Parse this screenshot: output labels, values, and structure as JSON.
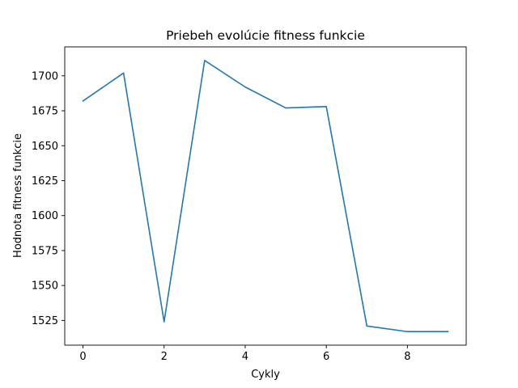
{
  "chart_data": {
    "type": "line",
    "title": "Priebeh evolúcie fitness funkcie",
    "xlabel": "Cykly",
    "ylabel": "Hodnota fitness funkcie",
    "x": [
      0,
      1,
      2,
      3,
      4,
      5,
      6,
      7,
      8,
      9
    ],
    "series": [
      {
        "values": [
          1682,
          1702,
          1524,
          1711,
          1692,
          1677,
          1678,
          1521,
          1517,
          1517
        ],
        "color": "#1f77b4"
      }
    ],
    "xlim": [
      -0.45,
      9.45
    ],
    "ylim": [
      1507.3,
      1720.7
    ],
    "xticks": [
      0,
      2,
      4,
      6,
      8
    ],
    "yticks": [
      1525,
      1550,
      1575,
      1600,
      1625,
      1650,
      1675,
      1700
    ],
    "grid": false,
    "legend": false
  }
}
